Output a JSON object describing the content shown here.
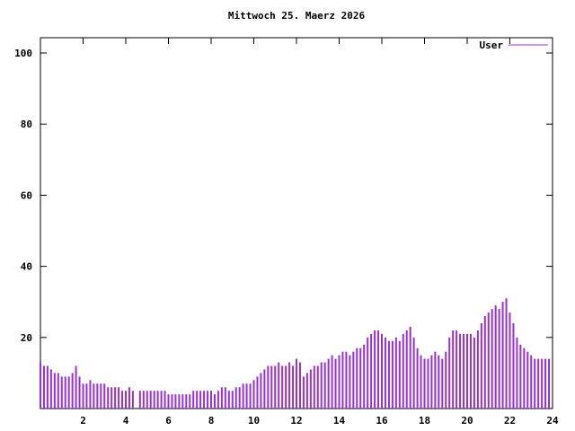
{
  "chart_data": {
    "type": "bar",
    "title": "Mittwoch 25. Maerz 2026",
    "legend": [
      {
        "name": "User",
        "color": "#9932cc"
      }
    ],
    "bar_color": "#9932cc",
    "axis_color": "#000000",
    "xlim": [
      0,
      24
    ],
    "ylim": [
      0,
      105
    ],
    "xticks": [
      2,
      4,
      6,
      8,
      10,
      12,
      14,
      16,
      18,
      20,
      22,
      24
    ],
    "yticks": [
      20,
      40,
      60,
      80,
      100
    ],
    "x_unit": "hour of day",
    "x_step_minutes": 10,
    "series_name": "User",
    "values": [
      13,
      12,
      12,
      11,
      10,
      10,
      9,
      9,
      9,
      10,
      12,
      9,
      7,
      7,
      8,
      7,
      7,
      7,
      7,
      6,
      6,
      6,
      6,
      5,
      5,
      6,
      5,
      0,
      5,
      5,
      5,
      5,
      5,
      5,
      5,
      5,
      4,
      4,
      4,
      4,
      4,
      4,
      4,
      5,
      5,
      5,
      5,
      5,
      5,
      4,
      5,
      6,
      6,
      5,
      5,
      6,
      6,
      7,
      7,
      7,
      8,
      9,
      10,
      11,
      12,
      12,
      12,
      13,
      12,
      12,
      13,
      12,
      14,
      13,
      9,
      10,
      11,
      12,
      12,
      13,
      13,
      14,
      15,
      14,
      15,
      16,
      16,
      15,
      16,
      17,
      17,
      18,
      20,
      21,
      22,
      22,
      21,
      20,
      19,
      19,
      20,
      19,
      21,
      22,
      23,
      20,
      17,
      15,
      14,
      14,
      15,
      16,
      15,
      14,
      16,
      20,
      22,
      22,
      21,
      21,
      21,
      21,
      20,
      22,
      24,
      26,
      27,
      28,
      29,
      28,
      30,
      31,
      27,
      24,
      20,
      18,
      17,
      16,
      15,
      14,
      14,
      14,
      14,
      14
    ]
  }
}
